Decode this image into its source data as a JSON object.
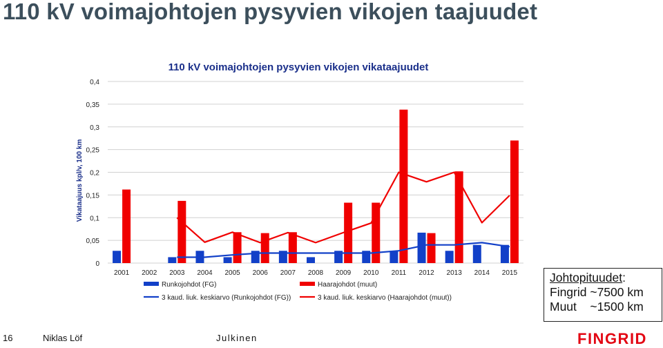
{
  "slide": {
    "title": "110 kV voimajohtojen pysyvien vikojen taajuudet",
    "page_number": "16",
    "author": "Niklas Löf",
    "classification": "Julkinen",
    "logo_text": "FINGRID"
  },
  "info_box": {
    "heading_word": "Johtopituudet",
    "heading_colon": ":",
    "line1": "Fingrid ~7500 km",
    "line2": "Muut    ~1500 km"
  },
  "colors": {
    "blue": "#1240c8",
    "red": "#f00000",
    "grid": "#d0d0d0",
    "title_blue": "#1a2f8a",
    "logo_red": "#e30613"
  },
  "chart_data": {
    "type": "bar",
    "title": "110 kV voimajohtojen pysyvien vikojen vikataajuudet",
    "ylabel": "Vikataajuus kpl/v, 100 km",
    "xlabel": "",
    "ylim": [
      0,
      0.4
    ],
    "yticks": [
      "0",
      "0,05",
      "0,1",
      "0,15",
      "0,2",
      "0,25",
      "0,3",
      "0,35",
      "0,4"
    ],
    "categories": [
      "2001",
      "2002",
      "2003",
      "2004",
      "2005",
      "2006",
      "2007",
      "2008",
      "2009",
      "2010",
      "2011",
      "2012",
      "2013",
      "2014",
      "2015"
    ],
    "series": [
      {
        "name": "Runkojohdot (FG)",
        "kind": "bar",
        "color": "#1240c8",
        "values": [
          0.027,
          0,
          0.013,
          0.027,
          0.013,
          0.027,
          0.027,
          0.013,
          0.027,
          0.027,
          0.027,
          0.067,
          0.027,
          0.04,
          0.04
        ]
      },
      {
        "name": "Haarajohdot (muut)",
        "kind": "bar",
        "color": "#f00000",
        "values": [
          0.162,
          0,
          0.137,
          0,
          0.068,
          0.066,
          0.068,
          0,
          0.133,
          0.133,
          0.338,
          0.066,
          0.202,
          0,
          0.27
        ]
      },
      {
        "name": "3 kaud. liuk. keskiarvo (Runkojohdot (FG))",
        "kind": "line",
        "color": "#1240c8",
        "values": [
          null,
          null,
          0.013,
          0.013,
          0.018,
          0.022,
          0.022,
          0.022,
          0.022,
          0.022,
          0.027,
          0.04,
          0.04,
          0.045,
          0.036
        ]
      },
      {
        "name": "3 kaud. liuk. keskiarvo (Haarajohdot (muut))",
        "kind": "line",
        "color": "#f00000",
        "values": [
          null,
          null,
          0.1,
          0.046,
          0.068,
          0.045,
          0.067,
          0.045,
          0.067,
          0.088,
          0.2,
          0.179,
          0.2,
          0.089,
          0.149
        ]
      }
    ],
    "legend": {
      "position": "bottom",
      "items": [
        "Runkojohdot (FG)",
        "Haarajohdot (muut)",
        "3 kaud. liuk. keskiarvo (Runkojohdot (FG))",
        "3 kaud. liuk. keskiarvo (Haarajohdot (muut))"
      ]
    },
    "grid": true
  }
}
